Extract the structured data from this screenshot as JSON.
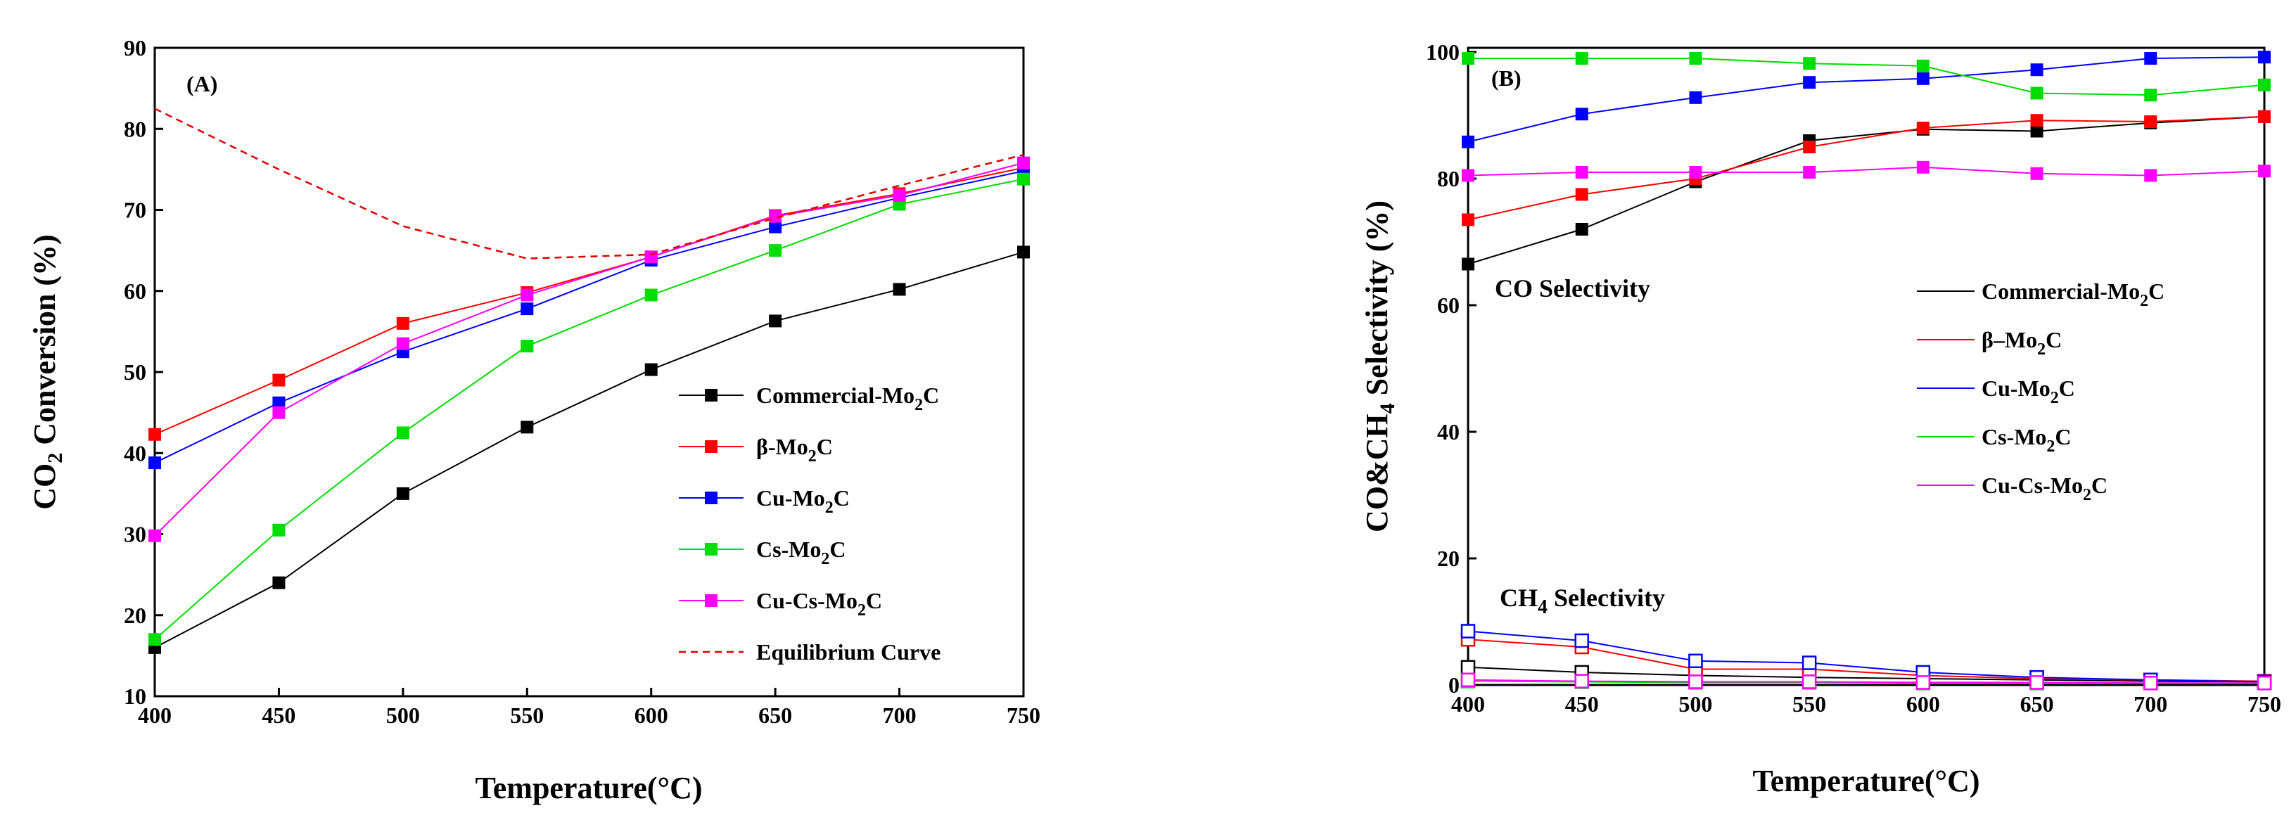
{
  "chart_data": [
    {
      "type": "line",
      "panel_label": "(A)",
      "xlabel": "Temperature",
      "xlabel_unit": "(°C)",
      "ylabel_parts": [
        "CO",
        "2",
        " Conversion (%)"
      ],
      "xlim": [
        400,
        750
      ],
      "ylim": [
        10,
        90
      ],
      "x": [
        400,
        450,
        500,
        550,
        600,
        650,
        700,
        750
      ],
      "xticks": [
        "400",
        "450",
        "500",
        "550",
        "600",
        "650",
        "700",
        "750"
      ],
      "yticks": [
        "10",
        "20",
        "30",
        "40",
        "50",
        "60",
        "70",
        "80",
        "90"
      ],
      "legend_position": "bottom-right",
      "series": [
        {
          "name": "Commercial-Mo2C",
          "label_parts": [
            "Commercial-Mo",
            "2",
            "C"
          ],
          "color": "#000000",
          "marker": "filled-square",
          "values": [
            16,
            24,
            35,
            43.2,
            50.3,
            56.3,
            60.2,
            64.8
          ]
        },
        {
          "name": "β-Mo2C",
          "label_parts": [
            "β-Mo",
            "2",
            "C"
          ],
          "color": "#ff0000",
          "marker": "filled-square",
          "values": [
            42.3,
            49,
            56,
            59.8,
            64.2,
            69.3,
            72,
            75.2
          ]
        },
        {
          "name": "Cu-Mo2C",
          "label_parts": [
            "Cu-Mo",
            "2",
            "C"
          ],
          "color": "#0000ff",
          "marker": "filled-square",
          "values": [
            38.8,
            46.2,
            52.5,
            57.8,
            63.8,
            67.9,
            71.5,
            74.8
          ]
        },
        {
          "name": "Cs-Mo2C",
          "label_parts": [
            "Cs-Mo",
            "2",
            "C"
          ],
          "color": "#00dd00",
          "marker": "filled-square",
          "values": [
            17,
            30.5,
            42.5,
            53.2,
            59.5,
            65,
            70.7,
            73.8
          ]
        },
        {
          "name": "Cu-Cs-Mo2C",
          "label_parts": [
            "Cu-Cs-Mo",
            "2",
            "C"
          ],
          "color": "#ff00ff",
          "marker": "filled-square",
          "values": [
            29.8,
            45,
            53.5,
            59.5,
            64.2,
            69.2,
            71.8,
            75.8
          ]
        },
        {
          "name": "Equilibrium Curve",
          "label_parts": [
            "Equilibrium Curve"
          ],
          "color": "#e00000",
          "marker": "none",
          "dashed": true,
          "values": [
            82.5,
            75,
            68,
            64,
            64.5,
            69,
            73,
            76.8
          ]
        }
      ]
    },
    {
      "type": "line",
      "panel_label": "(B)",
      "xlabel": "Temperature",
      "xlabel_unit": "(°C)",
      "ylabel_parts": [
        "CO&CH",
        "4",
        " Selectivity (%)"
      ],
      "xlim": [
        400,
        750
      ],
      "ylim": [
        0,
        100
      ],
      "x": [
        400,
        450,
        500,
        550,
        600,
        650,
        700,
        750
      ],
      "xticks": [
        "400",
        "450",
        "500",
        "550",
        "600",
        "650",
        "700",
        "750"
      ],
      "yticks": [
        "0",
        "20",
        "40",
        "60",
        "80",
        "100"
      ],
      "annotations": {
        "co_parts": [
          "CO Selectivity"
        ],
        "ch4_parts": [
          "CH",
          "4",
          " Selectivity"
        ]
      },
      "legend_position": "center-right",
      "legend": [
        {
          "label_parts": [
            "Commercial-Mo",
            "2",
            "C"
          ],
          "color": "#000000"
        },
        {
          "label_parts": [
            "β–Mo",
            "2",
            "C"
          ],
          "color": "#ff0000"
        },
        {
          "label_parts": [
            "Cu-Mo",
            "2",
            "C"
          ],
          "color": "#0000ff"
        },
        {
          "label_parts": [
            "Cs-Mo",
            "2",
            "C"
          ],
          "color": "#00dd00"
        },
        {
          "label_parts": [
            "Cu-Cs-Mo",
            "2",
            "C"
          ],
          "color": "#ff00ff"
        }
      ],
      "series": [
        {
          "name": "Commercial-Mo2C CO",
          "color": "#000000",
          "marker": "filled-square",
          "values": [
            66.5,
            72,
            79.5,
            86,
            87.8,
            87.5,
            88.8,
            89.8
          ]
        },
        {
          "name": "β-Mo2C CO",
          "color": "#ff0000",
          "marker": "filled-square",
          "values": [
            73.5,
            77.5,
            80,
            85,
            88,
            89.2,
            89,
            89.8
          ]
        },
        {
          "name": "Cu-Mo2C CO",
          "color": "#0000ff",
          "marker": "filled-square",
          "values": [
            85.8,
            90.2,
            92.8,
            95.2,
            95.8,
            97.2,
            99,
            99.2
          ]
        },
        {
          "name": "Cs-Mo2C CO",
          "color": "#00dd00",
          "marker": "filled-square",
          "values": [
            99,
            99,
            99,
            98.2,
            97.8,
            93.5,
            93.2,
            94.8
          ]
        },
        {
          "name": "Cu-Cs-Mo2C CO",
          "color": "#ff00ff",
          "marker": "filled-square",
          "values": [
            80.5,
            81,
            81,
            81,
            81.8,
            80.8,
            80.5,
            81.2
          ]
        },
        {
          "name": "Commercial-Mo2C CH4",
          "color": "#000000",
          "marker": "open-square",
          "values": [
            2.8,
            2,
            1.5,
            1.2,
            1,
            0.8,
            0.6,
            0.5
          ]
        },
        {
          "name": "β-Mo2C CH4",
          "color": "#ff0000",
          "marker": "open-square",
          "values": [
            7.2,
            6,
            2.5,
            2.5,
            1.5,
            1,
            0.8,
            0.6
          ]
        },
        {
          "name": "Cu-Mo2C CH4",
          "color": "#0000ff",
          "marker": "open-square",
          "values": [
            8.5,
            7,
            3.8,
            3.5,
            2,
            1.2,
            0.8,
            0.5
          ]
        },
        {
          "name": "Cs-Mo2C CH4",
          "color": "#00dd00",
          "marker": "open-square",
          "values": [
            0.6,
            0.5,
            0.4,
            0.4,
            0.3,
            0.3,
            0.3,
            0.3
          ]
        },
        {
          "name": "Cu-Cs-Mo2C CH4",
          "color": "#ff00ff",
          "marker": "open-square",
          "values": [
            0.8,
            0.6,
            0.5,
            0.5,
            0.4,
            0.4,
            0.3,
            0.3
          ]
        }
      ]
    }
  ]
}
